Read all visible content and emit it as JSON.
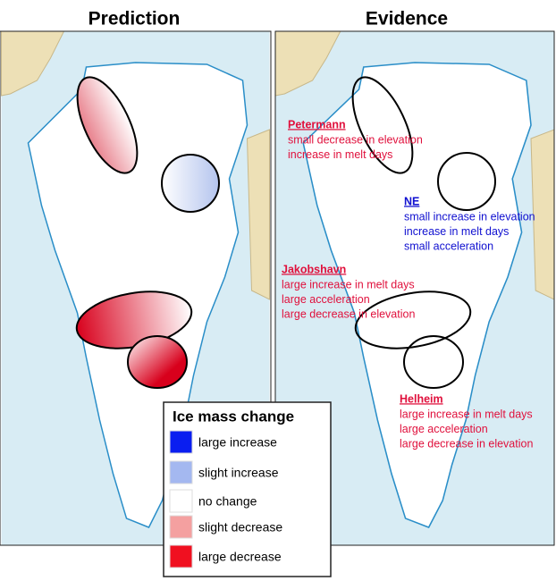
{
  "panels": [
    {
      "title": "Prediction"
    },
    {
      "title": "Evidence"
    }
  ],
  "annotations": [
    {
      "name": "Petermann",
      "lines": [
        "small decrease in elevation",
        "increase in melt days"
      ],
      "color": "#e0103c"
    },
    {
      "name": "NE",
      "lines": [
        "small increase in elevation",
        "increase in melt days",
        "small acceleration"
      ],
      "color": "#1010d0"
    },
    {
      "name": "Jakobshavn",
      "lines": [
        "large increase in melt days",
        "large acceleration",
        "large decrease in elevation"
      ],
      "color": "#e0103c"
    },
    {
      "name": "Helheim",
      "lines": [
        "large increase in melt days",
        "large acceleration",
        "large decrease in elevation"
      ],
      "color": "#e0103c"
    }
  ],
  "legend": {
    "title": "Ice mass change",
    "items": [
      {
        "label": "large increase",
        "color": "#0a1ef0"
      },
      {
        "label": "slight increase",
        "color": "#a4b8f0"
      },
      {
        "label": "no change",
        "color": "#ffffff"
      },
      {
        "label": "slight decrease",
        "color": "#f4a0a0"
      },
      {
        "label": "large decrease",
        "color": "#f01020"
      }
    ]
  }
}
